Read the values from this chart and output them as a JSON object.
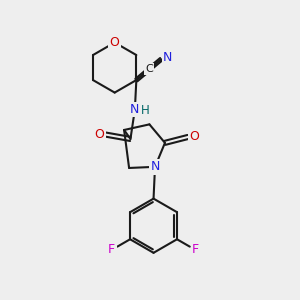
{
  "bg_color": "#eeeeee",
  "bond_color": "#1a1a1a",
  "N_color": "#2020dd",
  "O_color": "#cc0000",
  "F_color": "#cc00cc",
  "line_width": 1.5,
  "figsize": [
    3.0,
    3.0
  ],
  "dpi": 100,
  "xlim": [
    0,
    10
  ],
  "ylim": [
    0,
    10
  ]
}
